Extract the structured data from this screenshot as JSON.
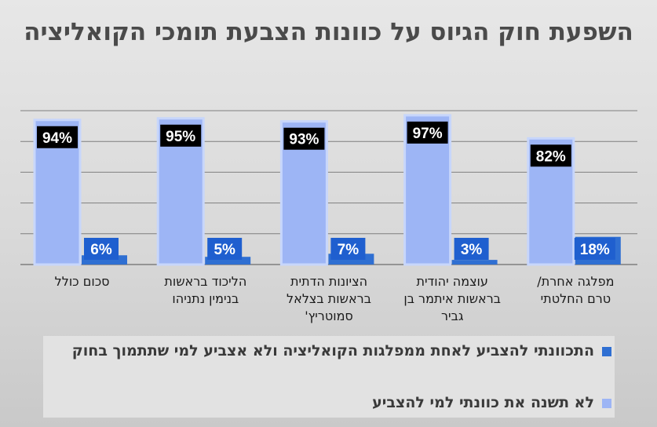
{
  "colors": {
    "not_change": "#9db5f5",
    "not_change_border": "#c7d6fb",
    "change_vote": "#2f6fd2",
    "label_box_dark": "#000000",
    "label_box_blue": "#1f5fcf",
    "grid": "#7f7f7f"
  },
  "chart_data": {
    "type": "bar",
    "title": "השפעת חוק הגיוס על כוונות הצבעת תומכי הקואליציה",
    "categories": [
      "סכום כולל",
      "הליכוד בראשות בנימין נתניהו",
      "הציונות הדתית בראשות בצלאל סמוטריץ'",
      "עוצמה יהודית בראשות איתמר בן גביר",
      "מפלגה אחרת/ טרם החלטתי"
    ],
    "series": [
      {
        "name": "לא תשנה את כוונתי למי להצביע",
        "values": [
          94,
          95,
          93,
          97,
          82
        ],
        "labels": [
          "94%",
          "95%",
          "93%",
          "97%",
          "82%"
        ]
      },
      {
        "name": "התכוונתי להצביע לאחת ממפלגות הקואליציה ולא אצביע למי שתתמוך בחוק",
        "values": [
          6,
          5,
          7,
          3,
          18
        ],
        "labels": [
          "6%",
          "5%",
          "7%",
          "3%",
          "18%"
        ]
      }
    ],
    "ylim": [
      0,
      100
    ],
    "grid": true,
    "legend_position": "bottom"
  }
}
